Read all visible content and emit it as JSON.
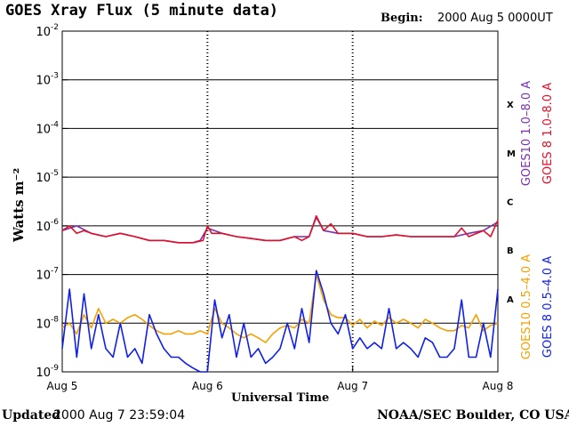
{
  "header": {
    "title": "GOES Xray Flux (5 minute data)",
    "begin_label": "Begin:",
    "begin_value": "2000 Aug 5 0000UT"
  },
  "footer": {
    "updated_label": "Updated",
    "updated_value": "2000 Aug  7 23:59:04",
    "credit": "NOAA/SEC Boulder, CO USA"
  },
  "colors": {
    "goes10_long": "#7a2fb0",
    "goes8_long": "#e0102a",
    "goes10_short": "#f5a000",
    "goes8_short": "#1020e8"
  },
  "chart_data": {
    "type": "line",
    "title": "GOES Xray Flux (5 minute data)",
    "xlabel": "Universal Time",
    "ylabel": "Watts m⁻²",
    "y_scale": "log",
    "ylim": [
      1e-09,
      0.01
    ],
    "x_tick_labels": [
      "Aug 5",
      "Aug 6",
      "Aug 7",
      "Aug 8"
    ],
    "y_tick_exponents": [
      "-2",
      "-3",
      "-4",
      "-5",
      "-6",
      "-7",
      "-8",
      "-9"
    ],
    "flare_classes": [
      "X",
      "M",
      "C",
      "B",
      "A"
    ],
    "legend_placement": "right",
    "series": [
      {
        "name": "GOES10 1.0–8.0 A",
        "color": "#7a2fb0",
        "hidden_under": "GOES 8 1.0–8.0 A",
        "x_days": [
          0,
          0.1,
          0.2,
          0.3,
          0.4,
          0.5,
          0.6,
          0.7,
          0.8,
          0.9,
          0.95,
          1.0,
          1.1,
          1.2,
          1.3,
          1.4,
          1.5,
          1.6,
          1.7,
          1.75,
          1.8,
          1.9,
          2.0,
          2.1,
          2.2,
          2.3,
          2.4,
          2.5,
          2.6,
          2.7,
          2.8,
          2.9,
          3.0
        ],
        "values": [
          8e-07,
          1e-06,
          7e-07,
          6e-07,
          7e-07,
          6e-07,
          5e-07,
          5e-07,
          4.5e-07,
          4.5e-07,
          5e-07,
          9e-07,
          7e-07,
          6e-07,
          5.5e-07,
          5e-07,
          5e-07,
          6e-07,
          6e-07,
          1.5e-06,
          8e-07,
          7e-07,
          7e-07,
          6e-07,
          6e-07,
          6.5e-07,
          6e-07,
          6e-07,
          6e-07,
          6e-07,
          7e-07,
          8e-07,
          1.2e-06
        ]
      },
      {
        "name": "GOES 8 1.0–8.0 A",
        "color": "#e0102a",
        "x_days": [
          0,
          0.05,
          0.1,
          0.15,
          0.2,
          0.3,
          0.4,
          0.5,
          0.6,
          0.7,
          0.8,
          0.9,
          0.97,
          1.0,
          1.03,
          1.1,
          1.2,
          1.3,
          1.4,
          1.5,
          1.6,
          1.65,
          1.7,
          1.75,
          1.8,
          1.85,
          1.9,
          2.0,
          2.1,
          2.2,
          2.3,
          2.4,
          2.5,
          2.6,
          2.7,
          2.75,
          2.8,
          2.9,
          2.95,
          3.0
        ],
        "values": [
          8e-07,
          1e-06,
          7e-07,
          8e-07,
          7e-07,
          6e-07,
          7e-07,
          6e-07,
          5e-07,
          5e-07,
          4.5e-07,
          4.5e-07,
          5e-07,
          1e-06,
          7e-07,
          7e-07,
          6e-07,
          5.5e-07,
          5e-07,
          5e-07,
          6e-07,
          5e-07,
          6e-07,
          1.6e-06,
          8e-07,
          1.1e-06,
          7e-07,
          7e-07,
          6e-07,
          6e-07,
          6.5e-07,
          6e-07,
          6e-07,
          6e-07,
          6e-07,
          9e-07,
          6e-07,
          8e-07,
          6e-07,
          1.3e-06
        ]
      },
      {
        "name": "GOES10 0.5–4.0 A",
        "color": "#f5a000",
        "x_days": [
          0,
          0.05,
          0.1,
          0.15,
          0.2,
          0.25,
          0.3,
          0.35,
          0.4,
          0.45,
          0.5,
          0.55,
          0.6,
          0.65,
          0.7,
          0.75,
          0.8,
          0.85,
          0.9,
          0.95,
          1.0,
          1.05,
          1.1,
          1.15,
          1.2,
          1.25,
          1.3,
          1.35,
          1.4,
          1.45,
          1.5,
          1.55,
          1.6,
          1.65,
          1.7,
          1.75,
          1.8,
          1.85,
          1.9,
          1.95,
          2.0,
          2.05,
          2.1,
          2.15,
          2.2,
          2.25,
          2.3,
          2.35,
          2.4,
          2.45,
          2.5,
          2.55,
          2.6,
          2.65,
          2.7,
          2.75,
          2.8,
          2.85,
          2.9,
          2.95,
          3.0
        ],
        "values": [
          8e-09,
          1e-08,
          6e-09,
          1.5e-08,
          8e-09,
          2e-08,
          1e-08,
          1.2e-08,
          1e-08,
          1.3e-08,
          1.5e-08,
          1.2e-08,
          9e-09,
          7e-09,
          6e-09,
          6e-09,
          7e-09,
          6e-09,
          6e-09,
          7e-09,
          6e-09,
          2e-08,
          1e-08,
          8e-09,
          6e-09,
          5e-09,
          6e-09,
          5e-09,
          4e-09,
          6e-09,
          8e-09,
          9e-09,
          8e-09,
          1.2e-08,
          1e-08,
          1e-07,
          3e-08,
          1.5e-08,
          1.3e-08,
          1.3e-08,
          9e-09,
          1.2e-08,
          8e-09,
          1.1e-08,
          9e-09,
          1.3e-08,
          1e-08,
          1.2e-08,
          1e-08,
          8e-09,
          1.2e-08,
          1e-08,
          8e-09,
          7e-09,
          7e-09,
          9e-09,
          8e-09,
          1.5e-08,
          7e-09,
          9e-09,
          1e-08
        ]
      },
      {
        "name": "GOES 8 0.5–4.0 A",
        "color": "#1020e8",
        "x_days": [
          0,
          0.05,
          0.1,
          0.15,
          0.2,
          0.25,
          0.3,
          0.35,
          0.4,
          0.45,
          0.5,
          0.55,
          0.6,
          0.65,
          0.7,
          0.75,
          0.8,
          0.85,
          0.9,
          0.95,
          1.0,
          1.05,
          1.1,
          1.15,
          1.2,
          1.25,
          1.3,
          1.35,
          1.4,
          1.45,
          1.5,
          1.55,
          1.6,
          1.65,
          1.7,
          1.75,
          1.8,
          1.85,
          1.9,
          1.95,
          2.0,
          2.05,
          2.1,
          2.15,
          2.2,
          2.25,
          2.3,
          2.35,
          2.4,
          2.45,
          2.5,
          2.55,
          2.6,
          2.65,
          2.7,
          2.75,
          2.8,
          2.85,
          2.9,
          2.95,
          3.0
        ],
        "values": [
          3e-09,
          5e-08,
          2e-09,
          4e-08,
          3e-09,
          1.5e-08,
          3e-09,
          2e-09,
          1e-08,
          2e-09,
          3e-09,
          1.5e-09,
          1.5e-08,
          6e-09,
          3e-09,
          2e-09,
          2e-09,
          1.5e-09,
          1.2e-09,
          1e-09,
          1e-09,
          3e-08,
          5e-09,
          1.5e-08,
          2e-09,
          1e-08,
          2e-09,
          3e-09,
          1.5e-09,
          2e-09,
          3e-09,
          1e-08,
          3e-09,
          2e-08,
          4e-09,
          1.2e-07,
          4e-08,
          1e-08,
          6e-09,
          1.5e-08,
          3e-09,
          5e-09,
          3e-09,
          4e-09,
          3e-09,
          2e-08,
          3e-09,
          4e-09,
          3e-09,
          2e-09,
          5e-09,
          4e-09,
          2e-09,
          2e-09,
          3e-09,
          3e-08,
          2e-09,
          2e-09,
          1e-08,
          2e-09,
          5e-08
        ]
      }
    ]
  }
}
